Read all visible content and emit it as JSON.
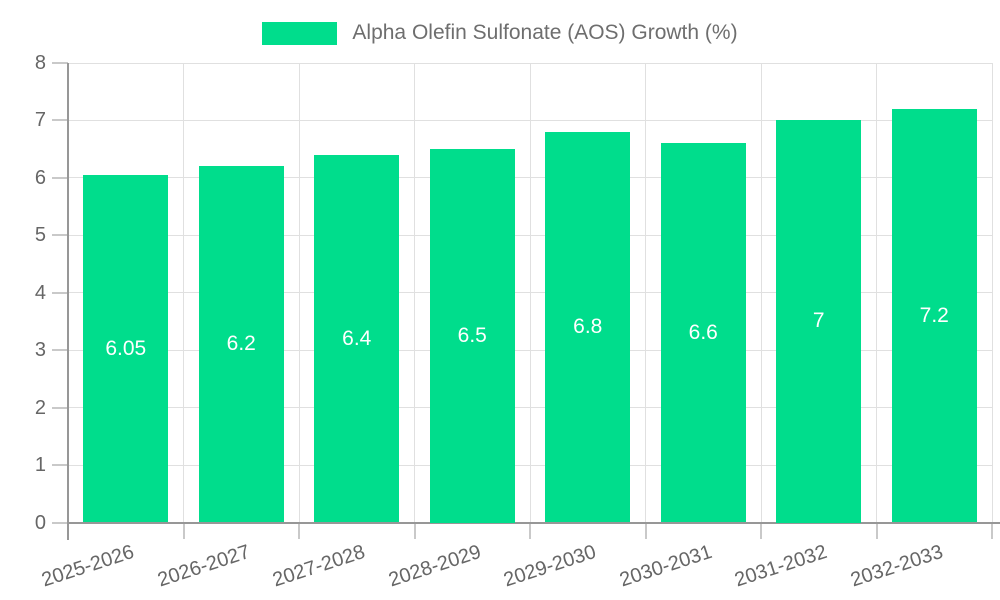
{
  "legend": {
    "label": "Alpha Olefin Sulfonate (AOS) Growth (%)"
  },
  "colors": {
    "bar": "#00DD8C",
    "grid": "#E0E0E0",
    "axis": "#979797",
    "tick": "#C9C9C9",
    "axis_text": "#666666",
    "legend_text": "#6E6E6E",
    "value_label_text": "#FFFFFF",
    "background": "#FFFFFF"
  },
  "chart_data": {
    "type": "bar",
    "title": "Alpha Olefin Sulfonate (AOS) Growth (%)",
    "legend_entries": [
      "Alpha Olefin Sulfonate (AOS) Growth (%)"
    ],
    "legend_position": "top-center",
    "categories": [
      "2025-2026",
      "2026-2027",
      "2027-2028",
      "2028-2029",
      "2029-2030",
      "2030-2031",
      "2031-2032",
      "2032-2033"
    ],
    "values": [
      6.05,
      6.2,
      6.4,
      6.5,
      6.8,
      6.6,
      7,
      7.2
    ],
    "bar_labels": [
      "6.05",
      "6.2",
      "6.4",
      "6.5",
      "6.8",
      "6.6",
      "7",
      "7.2"
    ],
    "bar_label_position": "inside-middle",
    "xlabel": "",
    "ylabel": "",
    "ylim": [
      0,
      8
    ],
    "yticks": [
      0,
      1,
      2,
      3,
      4,
      5,
      6,
      7,
      8
    ],
    "grid": true,
    "x_tick_label_rotation_deg": -18
  }
}
